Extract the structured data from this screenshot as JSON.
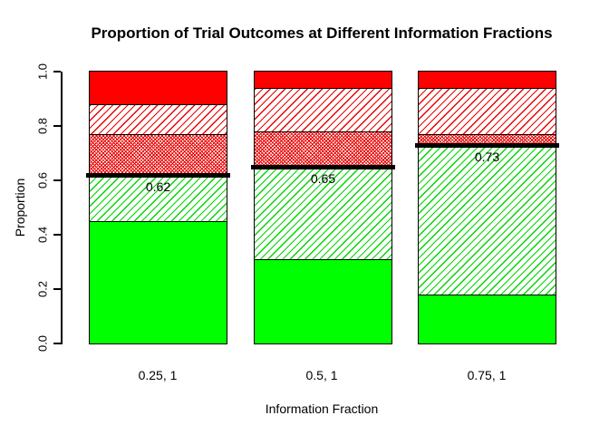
{
  "title": "Proportion of Trial Outcomes at Different Information Fractions",
  "y_axis": {
    "label": "Proportion",
    "tick_labels": [
      "0.0",
      "0.2",
      "0.4",
      "0.6",
      "0.8",
      "1.0"
    ],
    "range": [
      0,
      1
    ]
  },
  "x_axis": {
    "label": "Information Fraction"
  },
  "chart_data": {
    "type": "stacked-bar",
    "categories": [
      "0.25, 1",
      "0.5, 1",
      "0.75, 1"
    ],
    "series": [
      {
        "name": "solid-green-bottom",
        "style": "green-solid",
        "values": [
          0.45,
          0.31,
          0.18
        ]
      },
      {
        "name": "green-hatched",
        "style": "green-hatch",
        "values": [
          0.17,
          0.34,
          0.55
        ]
      },
      {
        "name": "red-dense-hatched",
        "style": "red-dense",
        "values": [
          0.15,
          0.13,
          0.04
        ]
      },
      {
        "name": "red-hatched",
        "style": "red-hatch",
        "values": [
          0.11,
          0.16,
          0.17
        ]
      },
      {
        "name": "solid-red-top",
        "style": "red-solid",
        "values": [
          0.12,
          0.06,
          0.06
        ]
      }
    ],
    "threshold_lines": {
      "values": [
        0.62,
        0.65,
        0.73
      ],
      "labels": [
        "0.62",
        "0.65",
        "0.73"
      ]
    },
    "title": "Proportion of Trial Outcomes at Different Information Fractions",
    "xlabel": "Information Fraction",
    "ylabel": "Proportion",
    "ylim": [
      0,
      1
    ],
    "grid": false,
    "legend": false,
    "colors": {
      "green": "#00ff00",
      "red": "#ff0000",
      "threshold_line": "#000000"
    }
  }
}
